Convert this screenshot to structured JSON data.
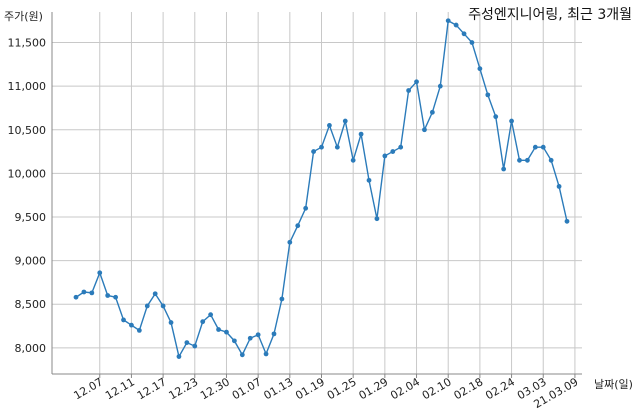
{
  "chart_data": {
    "type": "line",
    "title": "주성엔지니어링, 최근 3개월",
    "ylabel": "주가(원)",
    "xlabel": "날짜(일)",
    "ylim": [
      7700,
      11850
    ],
    "yticks": [
      8000,
      8500,
      9000,
      9500,
      10000,
      10500,
      11000,
      11500
    ],
    "ytick_labels": [
      "8,000",
      "8,500",
      "9,000",
      "9,500",
      "10,000",
      "10,500",
      "11,000",
      "11,500"
    ],
    "xtick_labels": [
      "12.07",
      "12.11",
      "12.17",
      "12.23",
      "12.30",
      "01.07",
      "01.13",
      "01.19",
      "01.25",
      "01.29",
      "02.04",
      "02.10",
      "02.18",
      "02.24",
      "03.03",
      "21.03.09"
    ],
    "xtick_index": [
      3,
      7,
      11,
      15,
      19,
      23,
      27,
      31,
      35,
      39,
      43,
      47,
      51,
      55,
      59,
      63
    ],
    "grid": true,
    "line_color": "#2b7bba",
    "series": [
      {
        "values": [
          8580,
          8640,
          8630,
          8860,
          8600,
          8580,
          8320,
          8260,
          8200,
          8480,
          8620,
          8480,
          8290,
          7900,
          8060,
          8020,
          8300,
          8380,
          8210,
          8180,
          8080,
          7920,
          8110,
          8150,
          7930,
          8160,
          8560,
          9210,
          9400,
          9600,
          10250,
          10300,
          10550,
          10300,
          10600,
          10150,
          10450,
          9920,
          9480,
          10200,
          10250,
          10300,
          10950,
          11050,
          10500,
          10700,
          11000,
          11750,
          11700,
          11600,
          11500,
          11200,
          10900,
          10650,
          10050,
          10600,
          10150,
          10150,
          10300,
          10300,
          10150,
          9850,
          9450
        ]
      }
    ]
  }
}
